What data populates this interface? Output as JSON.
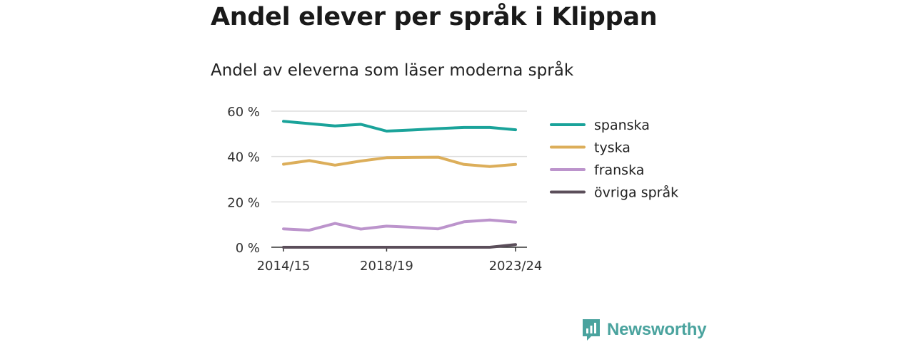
{
  "title": "Andel elever per språk i Klippan",
  "subtitle": "Andel av eleverna som läser moderna språk",
  "brand": {
    "name": "Newsworthy",
    "color": "#4aa39e"
  },
  "chart_data": {
    "type": "line",
    "x": [
      "2014/15",
      "2015/16",
      "2016/17",
      "2017/18",
      "2018/19",
      "2019/20",
      "2020/21",
      "2021/22",
      "2022/23",
      "2023/24"
    ],
    "x_tick_labels": [
      "2014/15",
      "2018/19",
      "2023/24"
    ],
    "y_ticks": [
      0,
      20,
      40,
      60
    ],
    "y_tick_labels": [
      "0 %",
      "20 %",
      "40 %",
      "60 %"
    ],
    "ylim": [
      0,
      60
    ],
    "grid": true,
    "legend_position": "right",
    "series": [
      {
        "name": "spanska",
        "color": "#1aa39a",
        "values": [
          55.5,
          54.5,
          53.5,
          54.2,
          51.2,
          51.7,
          52.3,
          52.8,
          52.8,
          51.8
        ]
      },
      {
        "name": "tyska",
        "color": "#dcae5a",
        "values": [
          36.6,
          38.2,
          36.2,
          38.0,
          39.5,
          39.6,
          39.7,
          36.5,
          35.6,
          36.5
        ]
      },
      {
        "name": "franska",
        "color": "#bc94cc",
        "values": [
          8.1,
          7.5,
          10.5,
          8.0,
          9.3,
          8.8,
          8.1,
          11.2,
          12.0,
          11.1
        ]
      },
      {
        "name": "övriga språk",
        "color": "#5b4e5a",
        "values": [
          0,
          0,
          0,
          0,
          0,
          0,
          0,
          0,
          0,
          1.2
        ]
      }
    ]
  }
}
